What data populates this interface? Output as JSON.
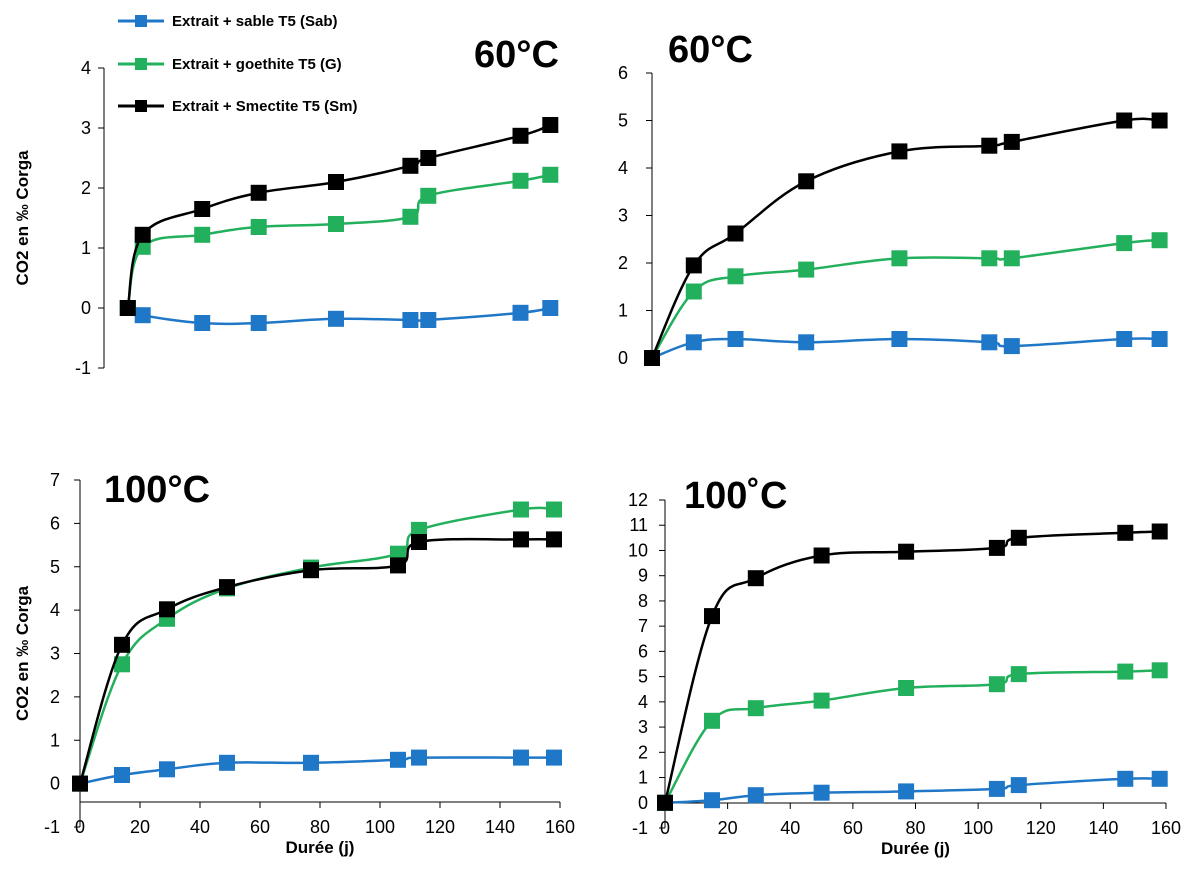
{
  "legend": [
    {
      "name": "Extrait + sable T5 (Sab)",
      "color": "#1f77c8"
    },
    {
      "name": "Extrait + goethite T5 (G)",
      "color": "#22b05c"
    },
    {
      "name": "Extrait + Smectite T5 (Sm)",
      "color": "#000000"
    }
  ],
  "chart_data": [
    {
      "type": "line",
      "title": "60°C",
      "xlabel": "",
      "ylabel": "CO2 en ‰ Corga",
      "xlim": [
        0,
        160
      ],
      "ylim": [
        -1,
        4
      ],
      "yticks": [
        -1,
        0,
        1,
        2,
        3,
        4
      ],
      "xticks": [],
      "x": [
        8,
        13,
        33,
        52,
        78,
        103,
        109,
        140,
        150
      ],
      "series": [
        {
          "name": "Extrait + sable T5 (Sab)",
          "color": "#1f77c8",
          "values": [
            0,
            -0.12,
            -0.25,
            -0.25,
            -0.18,
            -0.2,
            -0.2,
            -0.08,
            0
          ]
        },
        {
          "name": "Extrait + goethite T5 (G)",
          "color": "#22b05c",
          "values": [
            0,
            1.02,
            1.22,
            1.35,
            1.4,
            1.52,
            1.87,
            2.12,
            2.22
          ]
        },
        {
          "name": "Extrait + Smectite T5 (Sm)",
          "color": "#000000",
          "values": [
            0,
            1.22,
            1.65,
            1.92,
            2.1,
            2.37,
            2.5,
            2.87,
            3.05
          ]
        }
      ]
    },
    {
      "type": "line",
      "title": "60°C",
      "xlabel": "",
      "ylabel": "",
      "xlim": [
        0,
        160
      ],
      "ylim": [
        0,
        6
      ],
      "yticks": [
        0,
        1,
        2,
        3,
        4,
        5,
        6
      ],
      "xticks": [],
      "x": [
        0,
        13,
        26,
        48,
        77,
        105,
        112,
        147,
        158
      ],
      "series": [
        {
          "name": "Extrait + sable T5 (Sab)",
          "color": "#1f77c8",
          "values": [
            0,
            0.33,
            0.4,
            0.33,
            0.4,
            0.33,
            0.25,
            0.4,
            0.4
          ]
        },
        {
          "name": "Extrait + goethite T5 (G)",
          "color": "#22b05c",
          "values": [
            0,
            1.4,
            1.72,
            1.86,
            2.1,
            2.1,
            2.1,
            2.42,
            2.48
          ]
        },
        {
          "name": "Extrait + Smectite T5 (Sm)",
          "color": "#000000",
          "values": [
            0,
            1.95,
            2.62,
            3.72,
            4.35,
            4.47,
            4.55,
            5.0,
            5.0
          ]
        }
      ]
    },
    {
      "type": "line",
      "title": "100°C",
      "xlabel": "Durée (j)",
      "ylabel": "CO2 en ‰ Corga",
      "xlim": [
        0,
        160
      ],
      "ylim": [
        -1,
        7
      ],
      "yticks": [
        -1,
        0,
        1,
        2,
        3,
        4,
        5,
        6,
        7
      ],
      "xticks": [
        0,
        20,
        40,
        60,
        80,
        100,
        120,
        140,
        160
      ],
      "x": [
        0,
        14,
        29,
        49,
        77,
        106,
        113,
        147,
        158
      ],
      "series": [
        {
          "name": "Extrait + sable T5 (Sab)",
          "color": "#1f77c8",
          "values": [
            0,
            0.2,
            0.33,
            0.48,
            0.48,
            0.55,
            0.6,
            0.6,
            0.6
          ]
        },
        {
          "name": "Extrait + goethite T5 (G)",
          "color": "#22b05c",
          "values": [
            0,
            2.75,
            3.8,
            4.5,
            4.98,
            5.3,
            5.85,
            6.32,
            6.32
          ]
        },
        {
          "name": "Extrait + Smectite T5 (Sm)",
          "color": "#000000",
          "values": [
            0,
            3.2,
            4.02,
            4.53,
            4.92,
            5.03,
            5.57,
            5.63,
            5.63
          ]
        }
      ]
    },
    {
      "type": "line",
      "title": "100˚C",
      "xlabel": "Durée (j)",
      "ylabel": "",
      "xlim": [
        0,
        160
      ],
      "ylim": [
        -1,
        12
      ],
      "yticks": [
        -1,
        0,
        1,
        2,
        3,
        4,
        5,
        6,
        7,
        8,
        9,
        10,
        11,
        12
      ],
      "xticks": [
        0,
        20,
        40,
        60,
        80,
        100,
        120,
        140,
        160
      ],
      "x": [
        0,
        15,
        29,
        50,
        77,
        106,
        113,
        147,
        158
      ],
      "series": [
        {
          "name": "Extrait + sable T5 (Sab)",
          "color": "#1f77c8",
          "values": [
            0,
            0.1,
            0.3,
            0.4,
            0.45,
            0.55,
            0.7,
            0.95,
            0.95
          ]
        },
        {
          "name": "Extrait + goethite T5 (G)",
          "color": "#22b05c",
          "values": [
            0,
            3.25,
            3.75,
            4.05,
            4.55,
            4.7,
            5.1,
            5.2,
            5.25
          ]
        },
        {
          "name": "Extrait + Smectite T5 (Sm)",
          "color": "#000000",
          "values": [
            0,
            7.4,
            8.9,
            9.8,
            9.95,
            10.1,
            10.5,
            10.7,
            10.75
          ]
        }
      ]
    }
  ]
}
